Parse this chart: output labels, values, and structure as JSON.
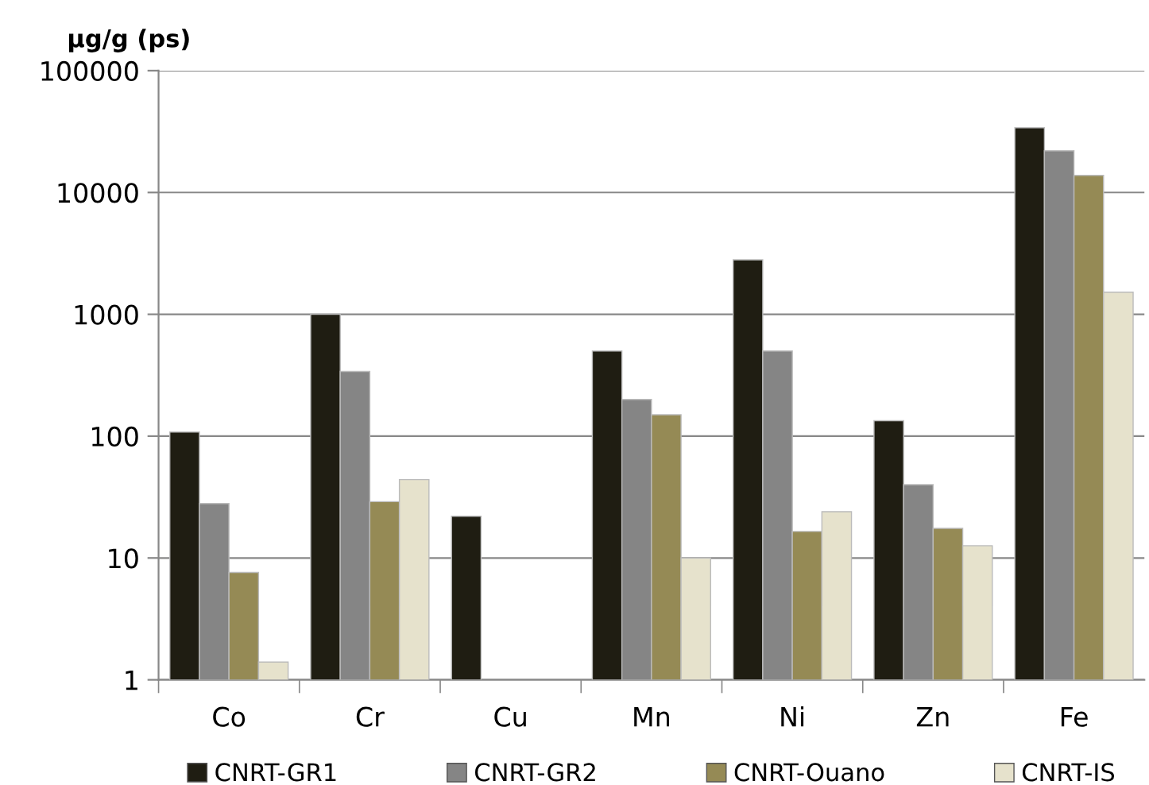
{
  "chart_data": {
    "type": "bar",
    "ylabel": "µg/g (ps)",
    "categories": [
      "Co",
      "Cr",
      "Cu",
      "Mn",
      "Ni",
      "Zn",
      "Fe"
    ],
    "series": [
      {
        "name": "CNRT-GR1",
        "color": "#1f1d12",
        "values": [
          108,
          1000,
          22,
          500,
          2800,
          134,
          34000
        ]
      },
      {
        "name": "CNRT-GR2",
        "color": "#858585",
        "values": [
          28,
          340,
          null,
          200,
          500,
          40,
          22000
        ]
      },
      {
        "name": "CNRT-Ouano",
        "color": "#958a55",
        "values": [
          7.6,
          29,
          null,
          150,
          16.5,
          17.5,
          13800
        ]
      },
      {
        "name": "CNRT-IS",
        "color": "#e6e2cc",
        "values": [
          1.4,
          44,
          null,
          10,
          24,
          12.6,
          1520
        ]
      }
    ],
    "log": "y",
    "ylim": [
      1,
      100000
    ],
    "yticks": [
      1,
      10,
      100,
      1000,
      10000,
      100000
    ],
    "grid": "y",
    "legend": "bottom"
  }
}
